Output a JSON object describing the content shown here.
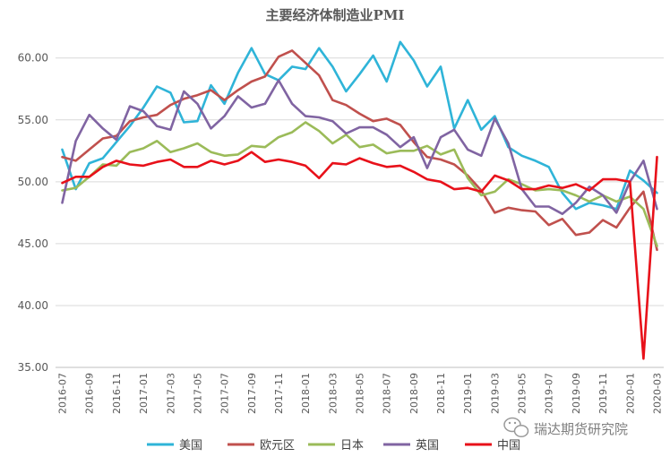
{
  "chart_data": {
    "type": "line",
    "title": "主要经济体制造业PMI",
    "xlabel": "",
    "ylabel": "",
    "ylim": [
      35,
      61.5
    ],
    "yticks": [
      "35.00",
      "40.00",
      "45.00",
      "50.00",
      "55.00",
      "60.00"
    ],
    "grid": true,
    "legend_position": "bottom",
    "x": [
      "2016-07",
      "2016-08",
      "2016-09",
      "2016-10",
      "2016-11",
      "2016-12",
      "2017-01",
      "2017-02",
      "2017-03",
      "2017-04",
      "2017-05",
      "2017-06",
      "2017-07",
      "2017-08",
      "2017-09",
      "2017-10",
      "2017-11",
      "2017-12",
      "2018-01",
      "2018-02",
      "2018-03",
      "2018-04",
      "2018-05",
      "2018-06",
      "2018-07",
      "2018-08",
      "2018-09",
      "2018-10",
      "2018-11",
      "2018-12",
      "2019-01",
      "2019-02",
      "2019-03",
      "2019-04",
      "2019-05",
      "2019-06",
      "2019-07",
      "2019-08",
      "2019-09",
      "2019-10",
      "2019-11",
      "2019-12",
      "2020-01",
      "2020-02",
      "2020-03"
    ],
    "xticks": [
      "2016-07",
      "2016-09",
      "2016-11",
      "2017-01",
      "2017-03",
      "2017-05",
      "2017-07",
      "2017-09",
      "2017-11",
      "2018-01",
      "2018-03",
      "2018-05",
      "2018-07",
      "2018-09",
      "2018-11",
      "2019-01",
      "2019-03",
      "2019-05",
      "2019-07",
      "2019-09",
      "2019-11",
      "2020-01",
      "2020-03"
    ],
    "series": [
      {
        "name": "美国",
        "color": "#2fb4d8",
        "values": [
          52.6,
          49.4,
          51.5,
          51.9,
          53.2,
          54.5,
          56.0,
          57.7,
          57.2,
          54.8,
          54.9,
          57.8,
          56.3,
          58.8,
          60.8,
          58.7,
          58.2,
          59.3,
          59.1,
          60.8,
          59.3,
          57.3,
          58.7,
          60.2,
          58.1,
          61.3,
          59.8,
          57.7,
          59.3,
          54.3,
          56.6,
          54.2,
          55.3,
          52.8,
          52.1,
          51.7,
          51.2,
          49.1,
          47.8,
          48.3,
          48.1,
          47.8,
          50.9,
          50.1,
          49.1
        ]
      },
      {
        "name": "欧元区",
        "color": "#c0504d",
        "values": [
          52.0,
          51.7,
          52.6,
          53.5,
          53.7,
          54.9,
          55.2,
          55.4,
          56.2,
          56.7,
          57.0,
          57.4,
          56.6,
          57.4,
          58.1,
          58.5,
          60.1,
          60.6,
          59.6,
          58.6,
          56.6,
          56.2,
          55.5,
          54.9,
          55.1,
          54.6,
          53.2,
          52.0,
          51.8,
          51.4,
          50.5,
          49.3,
          47.5,
          47.9,
          47.7,
          47.6,
          46.5,
          47.0,
          45.7,
          45.9,
          46.9,
          46.3,
          47.9,
          49.2,
          44.5
        ]
      },
      {
        "name": "日本",
        "color": "#9bbb59",
        "values": [
          49.3,
          49.5,
          50.4,
          51.4,
          51.3,
          52.4,
          52.7,
          53.3,
          52.4,
          52.7,
          53.1,
          52.4,
          52.1,
          52.2,
          52.9,
          52.8,
          53.6,
          54.0,
          54.8,
          54.1,
          53.1,
          53.8,
          52.8,
          53.0,
          52.3,
          52.5,
          52.5,
          52.9,
          52.2,
          52.6,
          50.3,
          48.9,
          49.2,
          50.2,
          49.8,
          49.3,
          49.4,
          49.3,
          48.9,
          48.4,
          48.9,
          48.4,
          48.8,
          47.8,
          44.8
        ]
      },
      {
        "name": "英国",
        "color": "#8064a2",
        "values": [
          48.3,
          53.3,
          55.4,
          54.3,
          53.4,
          56.1,
          55.7,
          54.5,
          54.2,
          57.3,
          56.3,
          54.3,
          55.3,
          56.9,
          56.0,
          56.3,
          58.2,
          56.3,
          55.3,
          55.2,
          54.9,
          53.9,
          54.4,
          54.4,
          53.8,
          52.8,
          53.6,
          51.1,
          53.6,
          54.2,
          52.6,
          52.1,
          55.1,
          53.1,
          49.4,
          48.0,
          48.0,
          47.4,
          48.3,
          49.6,
          48.9,
          47.5,
          50.0,
          51.7,
          47.8
        ]
      },
      {
        "name": "中国",
        "color": "#e8111a",
        "values": [
          49.9,
          50.4,
          50.4,
          51.2,
          51.7,
          51.4,
          51.3,
          51.6,
          51.8,
          51.2,
          51.2,
          51.7,
          51.4,
          51.7,
          52.4,
          51.6,
          51.8,
          51.6,
          51.3,
          50.3,
          51.5,
          51.4,
          51.9,
          51.5,
          51.2,
          51.3,
          50.8,
          50.2,
          50.0,
          49.4,
          49.5,
          49.2,
          50.5,
          50.1,
          49.4,
          49.4,
          49.7,
          49.5,
          49.8,
          49.3,
          50.2,
          50.2,
          50.0,
          35.7,
          52.0
        ]
      }
    ]
  },
  "watermark": {
    "text": "瑞达期货研究院",
    "icon": "wechat-icon"
  }
}
